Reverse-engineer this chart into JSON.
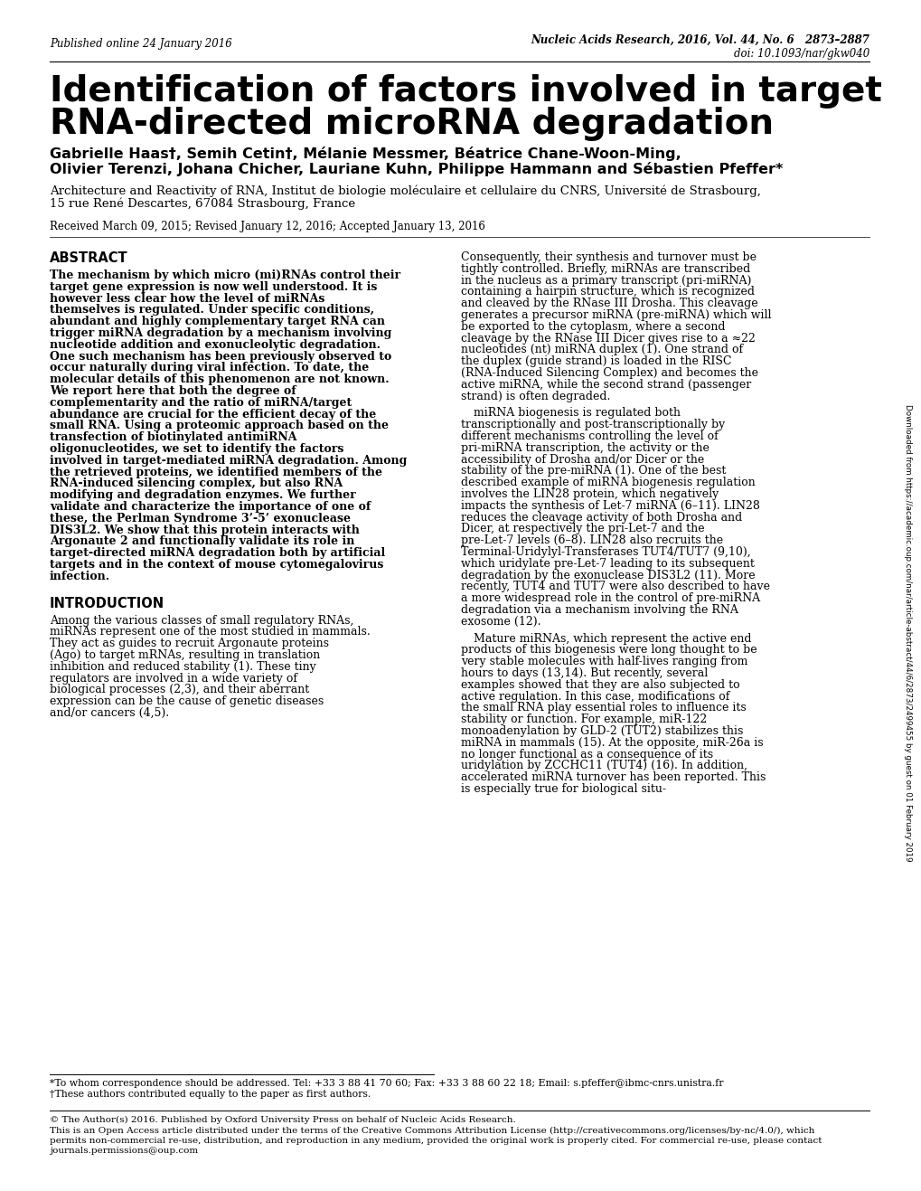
{
  "bg_color": "#ffffff",
  "top_left_text": "Published online 24 January 2016",
  "top_right_line1": "Nucleic Acids Research, 2016, Vol. 44, No. 6   2873–2887",
  "top_right_line2": "doi: 10.1093/nar/gkw040",
  "title_line1": "Identification of factors involved in target",
  "title_line2": "RNA-directed microRNA degradation",
  "authors_line1": "Gabrielle Haas†, Semih Cetin†, Mélanie Messmer, Béatrice Chane-Woon-Ming,",
  "authors_line2": "Olivier Terenzi, Johana Chicher, Lauriane Kuhn, Philippe Hammann and Sébastien Pfeffer*",
  "affiliation_line1": "Architecture and Reactivity of RNA, Institut de biologie moléculaire et cellulaire du CNRS, Université de Strasbourg,",
  "affiliation_line2": "15 rue René Descartes, 67084 Strasbourg, France",
  "received": "Received March 09, 2015; Revised January 12, 2016; Accepted January 13, 2016",
  "abstract_title": "ABSTRACT",
  "abstract_body": "The mechanism by which micro (mi)RNAs control their target gene expression is now well understood. It is however less clear how the level of miRNAs themselves is regulated. Under specific conditions, abundant and highly complementary target RNA can trigger miRNA degradation by a mechanism involving nucleotide addition and exonucleolytic degradation. One such mechanism has been previously observed to occur naturally during viral infection. To date, the molecular details of this phenomenon are not known. We report here that both the degree of complementarity and the ratio of miRNA/target abundance are crucial for the efficient decay of the small RNA. Using a proteomic approach based on the transfection of biotinylated antimiRNA oligonucleotides, we set to identify the factors involved in target-mediated miRNA degradation. Among the retrieved proteins, we identified members of the RNA-induced silencing complex, but also RNA modifying and degradation enzymes. We further validate and characterize the importance of one of these, the Perlman Syndrome 3’-5’ exonuclease DIS3L2. We show that this protein interacts with Argonaute 2 and functionally validate its role in target-directed miRNA degradation both by artificial targets and in the context of mouse cytomegalovirus infection.",
  "intro_title": "INTRODUCTION",
  "intro_body": "Among the various classes of small regulatory RNAs, miRNAs represent one of the most studied in mammals. They act as guides to recruit Argonaute proteins (Ago) to target mRNAs, resulting in translation inhibition and reduced stability (1). These tiny regulators are involved in a wide variety of biological processes (2,3), and their aberrant expression can be the cause of genetic diseases and/or cancers (4,5).",
  "right_col_para1": "Consequently, their synthesis and turnover must be tightly controlled. Briefly, miRNAs are transcribed in the nucleus as a primary transcript (pri-miRNA) containing a hairpin structure, which is recognized and cleaved by the RNase III Drosha. This cleavage generates a precursor miRNA (pre-miRNA) which will be exported to the cytoplasm, where a second cleavage by the RNase III Dicer gives rise to a ≈22 nucleotides (nt) miRNA duplex (1). One strand of the duplex (guide strand) is loaded in the RISC (RNA-Induced Silencing Complex) and becomes the active miRNA, while the second strand (passenger strand) is often degraded.",
  "right_col_para2": "miRNA biogenesis is regulated both transcriptionally and post-transcriptionally by different mechanisms controlling the level of pri-miRNA transcription, the activity or the accessibility of Drosha and/or Dicer or the stability of the pre-miRNA (1). One of the best described example of miRNA biogenesis regulation involves the LIN28 protein, which negatively impacts the synthesis of Let-7 miRNA (6–11). LIN28 reduces the cleavage activity of both Drosha and Dicer, at respectively the pri-Let-7 and the pre-Let-7 levels (6–8). LIN28 also recruits the Terminal-Uridylyl-Transferases TUT4/TUT7 (9,10), which uridylate pre-Let-7 leading to its subsequent degradation by the exonuclease DIS3L2 (11). More recently, TUT4 and TUT7 were also described to have a more widespread role in the control of pre-miRNA degradation via a mechanism involving the RNA exosome (12).",
  "right_col_para3": "Mature miRNAs, which represent the active end products of this biogenesis were long thought to be very stable molecules with half-lives ranging from hours to days (13,14). But recently, several examples showed that they are also subjected to active regulation. In this case, modifications of the small RNA play essential roles to influence its stability or function. For example, miR-122 monoadenylation by GLD-2 (TUT2) stabilizes this miRNA in mammals (15). At the opposite, miR-26a is no longer functional as a consequence of its uridylation by ZCCHC11 (TUT4) (16). In addition, accelerated miRNA turnover has been reported. This is especially true for biological situ-",
  "side_text": "Downloaded from https://academic.oup.com/nar/article-abstract/44/6/2873/2499455 by guest on 01 February 2019",
  "footnote_star": "*To whom correspondence should be addressed. Tel: +33 3 88 41 70 60; Fax: +33 3 88 60 22 18; Email: s.pfeffer@ibmc-cnrs.unistra.fr",
  "footnote_dagger": "†These authors contributed equally to the paper as first authors.",
  "copyright_line1": "© The Author(s) 2016. Published by Oxford University Press on behalf of Nucleic Acids Research.",
  "copyright_line2": "This is an Open Access article distributed under the terms of the Creative Commons Attribution License (http://creativecommons.org/licenses/by-nc/4.0/), which",
  "copyright_line3": "permits non-commercial re-use, distribution, and reproduction in any medium, provided the original work is properly cited. For commercial re-use, please contact",
  "copyright_line4": "journals.permissions@oup.com"
}
